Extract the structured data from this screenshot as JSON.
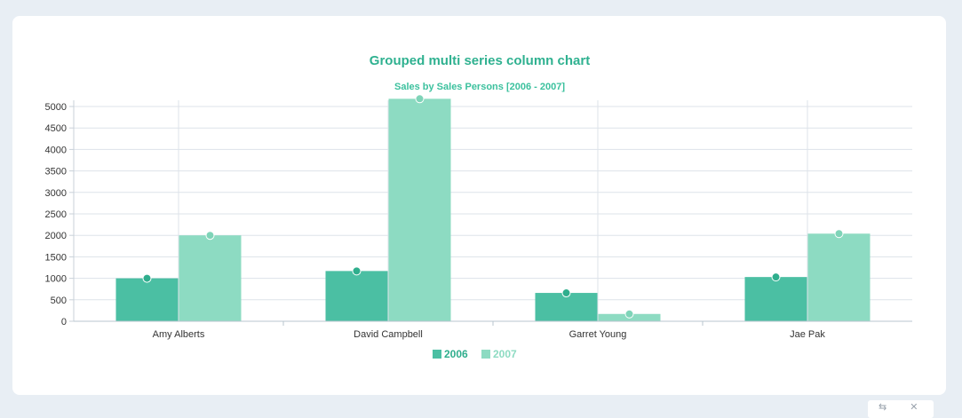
{
  "chart_data": {
    "type": "bar",
    "title": "Grouped multi series column chart",
    "subtitle": "Sales by Sales Persons [2006 - 2007]",
    "xlabel": "",
    "ylabel": "",
    "categories": [
      "Amy Alberts",
      "David Campbell",
      "Garret Young",
      "Jae Pak"
    ],
    "series": [
      {
        "name": "2006",
        "values": [
          1000,
          1170,
          660,
          1030
        ],
        "color": "#4bbfa3"
      },
      {
        "name": "2007",
        "values": [
          2000,
          5180,
          170,
          2040
        ],
        "color": "#8ddbc2"
      }
    ],
    "ylim": [
      0,
      5000
    ],
    "yticks": [
      0,
      500,
      1000,
      1500,
      2000,
      2500,
      3000,
      3500,
      4000,
      4500,
      5000
    ],
    "grid": true,
    "legend": "bottom-center"
  },
  "toolbar": {
    "icons": [
      "swap-icon",
      "close-icon"
    ]
  },
  "colors": {
    "title": "#2fb190",
    "background": "#e8eef4",
    "grid": "#dde3ea"
  }
}
